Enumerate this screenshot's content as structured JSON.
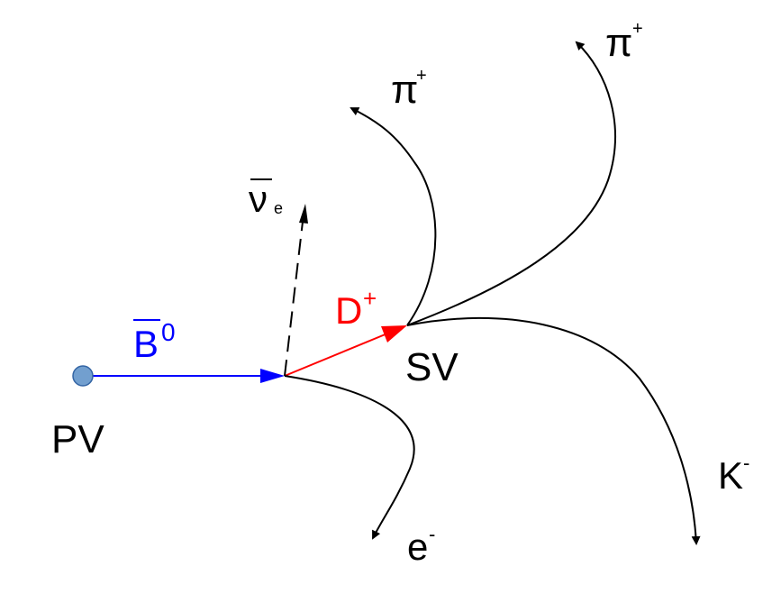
{
  "colors": {
    "background": "#ffffff",
    "track": "#000000",
    "b_meson": "#0000ff",
    "d_meson": "#ff0000",
    "vertex_fill": "#729fcf",
    "vertex_stroke": "#3465a4"
  },
  "labels": {
    "pv": "PV",
    "sv": "SV",
    "b_meson": {
      "symbol": "B",
      "superscript": "0",
      "bar": true
    },
    "d_meson": {
      "symbol": "D",
      "superscript": "+"
    },
    "neutrino": {
      "symbol": "ν",
      "subscript": "e",
      "bar": true
    },
    "pion_left": {
      "symbol": "π",
      "superscript": "+"
    },
    "pion_right": {
      "symbol": "π",
      "superscript": "+"
    },
    "kaon": {
      "symbol": "K",
      "superscript": "-"
    },
    "electron": {
      "symbol": "e",
      "superscript": "-"
    }
  },
  "tracks": {
    "b_meson": {
      "style": "solid",
      "color_key": "b_meson"
    },
    "d_meson": {
      "style": "solid",
      "color_key": "d_meson"
    },
    "neutrino": {
      "style": "dashed",
      "color_key": "track"
    },
    "electron": {
      "style": "solid",
      "color_key": "track"
    },
    "pion_left": {
      "style": "solid",
      "color_key": "track"
    },
    "pion_right": {
      "style": "solid",
      "color_key": "track"
    },
    "kaon": {
      "style": "solid",
      "color_key": "track"
    }
  }
}
